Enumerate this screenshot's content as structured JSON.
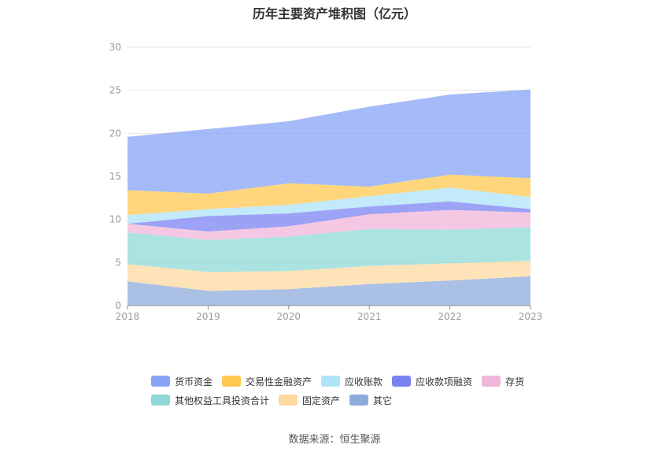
{
  "chart_data": {
    "type": "area",
    "stacked": true,
    "title": "历年主要资产堆积图（亿元）",
    "x": [
      "2018",
      "2019",
      "2020",
      "2021",
      "2022",
      "2023"
    ],
    "ylim": [
      0,
      30
    ],
    "yticks": [
      "0",
      "5",
      "10",
      "15",
      "20",
      "25",
      "30"
    ],
    "grid": true,
    "legend_position": "bottom",
    "series": [
      {
        "name": "其它",
        "color": "#8fabdc",
        "values": [
          2.8,
          1.7,
          1.9,
          2.5,
          2.9,
          3.4
        ]
      },
      {
        "name": "固定资产",
        "color": "#fdd9a0",
        "values": [
          2.0,
          2.2,
          2.1,
          2.1,
          2.0,
          1.8
        ]
      },
      {
        "name": "其他权益工具投资合计",
        "color": "#8ed9d6",
        "values": [
          3.7,
          3.7,
          4.0,
          4.3,
          3.9,
          3.9
        ]
      },
      {
        "name": "存货",
        "color": "#f0b6d9",
        "values": [
          1.0,
          1.0,
          1.2,
          1.7,
          2.3,
          1.7
        ]
      },
      {
        "name": "应收款项融资",
        "color": "#7b83f2",
        "values": [
          0.0,
          1.8,
          1.5,
          0.9,
          1.0,
          0.4
        ]
      },
      {
        "name": "应收账款",
        "color": "#aee3f8",
        "values": [
          1.0,
          0.8,
          1.0,
          1.2,
          1.6,
          1.4
        ]
      },
      {
        "name": "交易性金融资产",
        "color": "#ffc84f",
        "values": [
          2.9,
          1.8,
          2.5,
          1.1,
          1.5,
          2.2
        ]
      },
      {
        "name": "货币资金",
        "color": "#87a3f6",
        "values": [
          6.2,
          7.5,
          7.2,
          9.3,
          9.3,
          10.3
        ]
      }
    ]
  },
  "legend_order": [
    "货币资金",
    "交易性金融资产",
    "应收账款",
    "应收款项融资",
    "存货",
    "其他权益工具投资合计",
    "固定资产",
    "其它"
  ],
  "source": "数据来源：恒生聚源"
}
